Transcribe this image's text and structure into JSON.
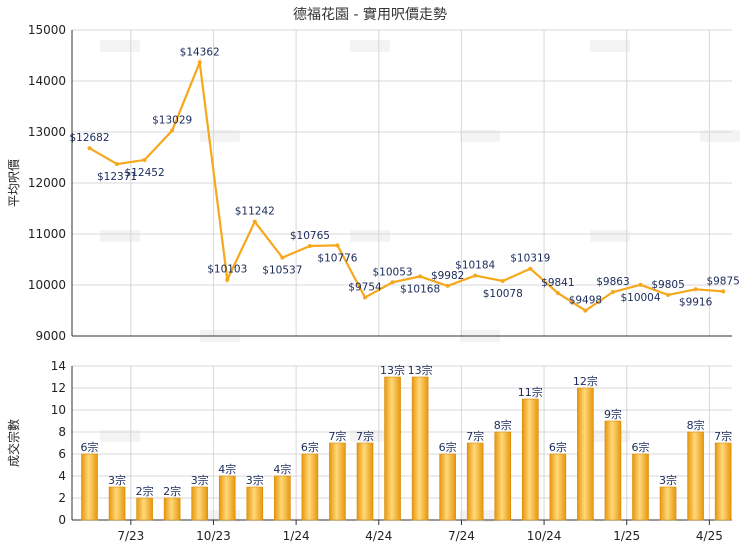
{
  "chart_data": [
    {
      "type": "line",
      "title": "德福花園 - 實用呎價走勢",
      "ylabel": "平均呎價",
      "ylim": [
        9000,
        15000
      ],
      "yticks": [
        9000,
        10000,
        11000,
        12000,
        13000,
        14000,
        15000
      ],
      "grid": true,
      "x_tick_labels": [
        "7/23",
        "10/23",
        "1/24",
        "4/24",
        "7/24",
        "10/24",
        "1/25",
        "4/25"
      ],
      "series": [
        {
          "color": "#f5a81c",
          "values": [
            12682,
            12371,
            12452,
            13029,
            14362,
            10103,
            11242,
            10537,
            10765,
            10776,
            9754,
            10053,
            10168,
            9982,
            10184,
            10078,
            10319,
            9841,
            9498,
            9863,
            10004,
            9805,
            9916,
            9875
          ],
          "labels": [
            "$12682",
            "$12371",
            "$12452",
            "$13029",
            "$14362",
            "$10103",
            "$11242",
            "$10537",
            "$10765",
            "$10776",
            "$9754",
            "$10053",
            "$10168",
            "$9982",
            "$10184",
            "$10078",
            "$10319",
            "$9841",
            "$9498",
            "$9863",
            "$10004",
            "$9805",
            "$9916",
            "$9875"
          ]
        }
      ]
    },
    {
      "type": "bar",
      "ylabel": "成交宗數",
      "ylim": [
        0,
        14
      ],
      "yticks": [
        0,
        2,
        4,
        6,
        8,
        10,
        12,
        14
      ],
      "grid": true,
      "x_tick_labels": [
        "7/23",
        "10/23",
        "1/24",
        "4/24",
        "7/24",
        "10/24",
        "1/25",
        "4/25"
      ],
      "series": [
        {
          "color": "#f5a81c",
          "values": [
            6,
            3,
            2,
            2,
            3,
            4,
            3,
            4,
            6,
            7,
            7,
            13,
            13,
            6,
            7,
            8,
            11,
            6,
            12,
            9,
            6,
            3,
            8,
            7
          ],
          "labels": [
            "6宗",
            "3宗",
            "2宗",
            "2宗",
            "3宗",
            "4宗",
            "3宗",
            "4宗",
            "6宗",
            "7宗",
            "7宗",
            "13宗",
            "13宗",
            "6宗",
            "7宗",
            "8宗",
            "11宗",
            "6宗",
            "12宗",
            "9宗",
            "6宗",
            "3宗",
            "8宗",
            "7宗"
          ]
        }
      ]
    }
  ],
  "colors": {
    "line": "#f5a81c",
    "bar_light": "#ffd97a",
    "bar_dark": "#e8960c",
    "grid": "#d8d8d8",
    "axis": "#333333"
  }
}
